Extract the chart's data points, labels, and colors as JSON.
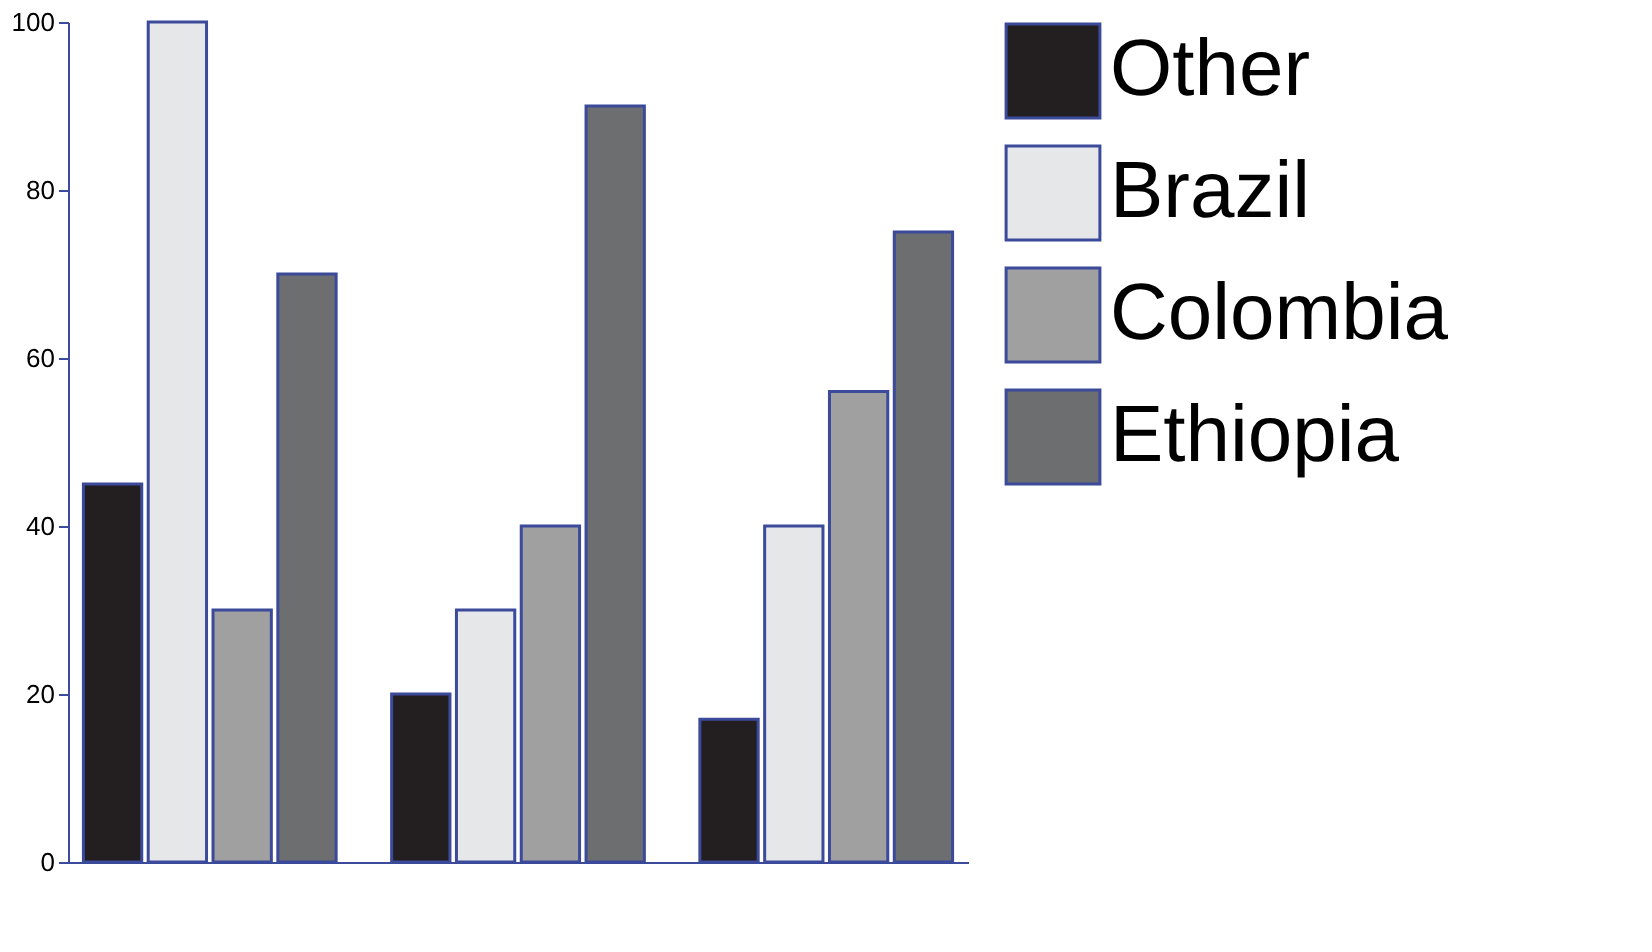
{
  "chart_data": {
    "type": "bar",
    "categories": [
      null,
      null,
      null
    ],
    "series": [
      {
        "name": "Other",
        "color": "#231f20",
        "values": [
          45,
          20,
          17
        ]
      },
      {
        "name": "Brazil",
        "color": "#e6e7e8",
        "values": [
          100,
          30,
          40
        ]
      },
      {
        "name": "Colombia",
        "color": "#a0a0a0",
        "values": [
          30,
          40,
          56
        ]
      },
      {
        "name": "Ethiopia",
        "color": "#6d6e70",
        "values": [
          70,
          90,
          75
        ]
      }
    ],
    "ylim": [
      0,
      100
    ],
    "yticks": [
      0,
      20,
      40,
      60,
      80,
      100
    ],
    "grid": false,
    "legend": "top right",
    "tick_labels": "y"
  }
}
